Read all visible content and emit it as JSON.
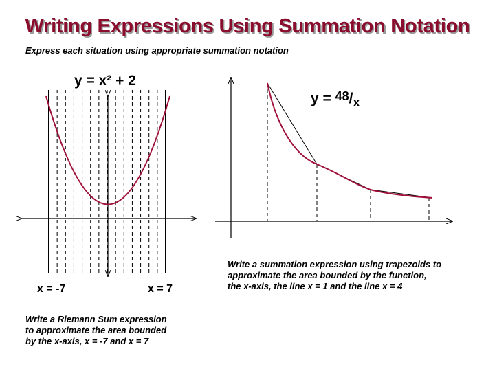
{
  "slide": {
    "title": "Writing Expressions Using Summation Notation",
    "subtitle": "Express each situation using appropriate summation notation"
  },
  "left_figure": {
    "equation": "y = x² + 2",
    "bound_left_label": "x = -7",
    "bound_right_label": "x = 7",
    "description_lines": [
      "Write a Riemann Sum expression",
      "to approximate the area bounded",
      "by the x-axis, x = -7 and x = 7"
    ]
  },
  "right_figure": {
    "equation_prefix": "y =",
    "equation_numerator": "48",
    "equation_slash": "/",
    "equation_denominator": "x",
    "description_lines": [
      "Write a summation expression using trapezoids to",
      "approximate the area bounded by the function,",
      "the x-axis, the line x = 1 and the line x = 4"
    ]
  },
  "colors": {
    "title": "#8b0d2e",
    "curve": "#a0103a",
    "ink": "#000000"
  }
}
